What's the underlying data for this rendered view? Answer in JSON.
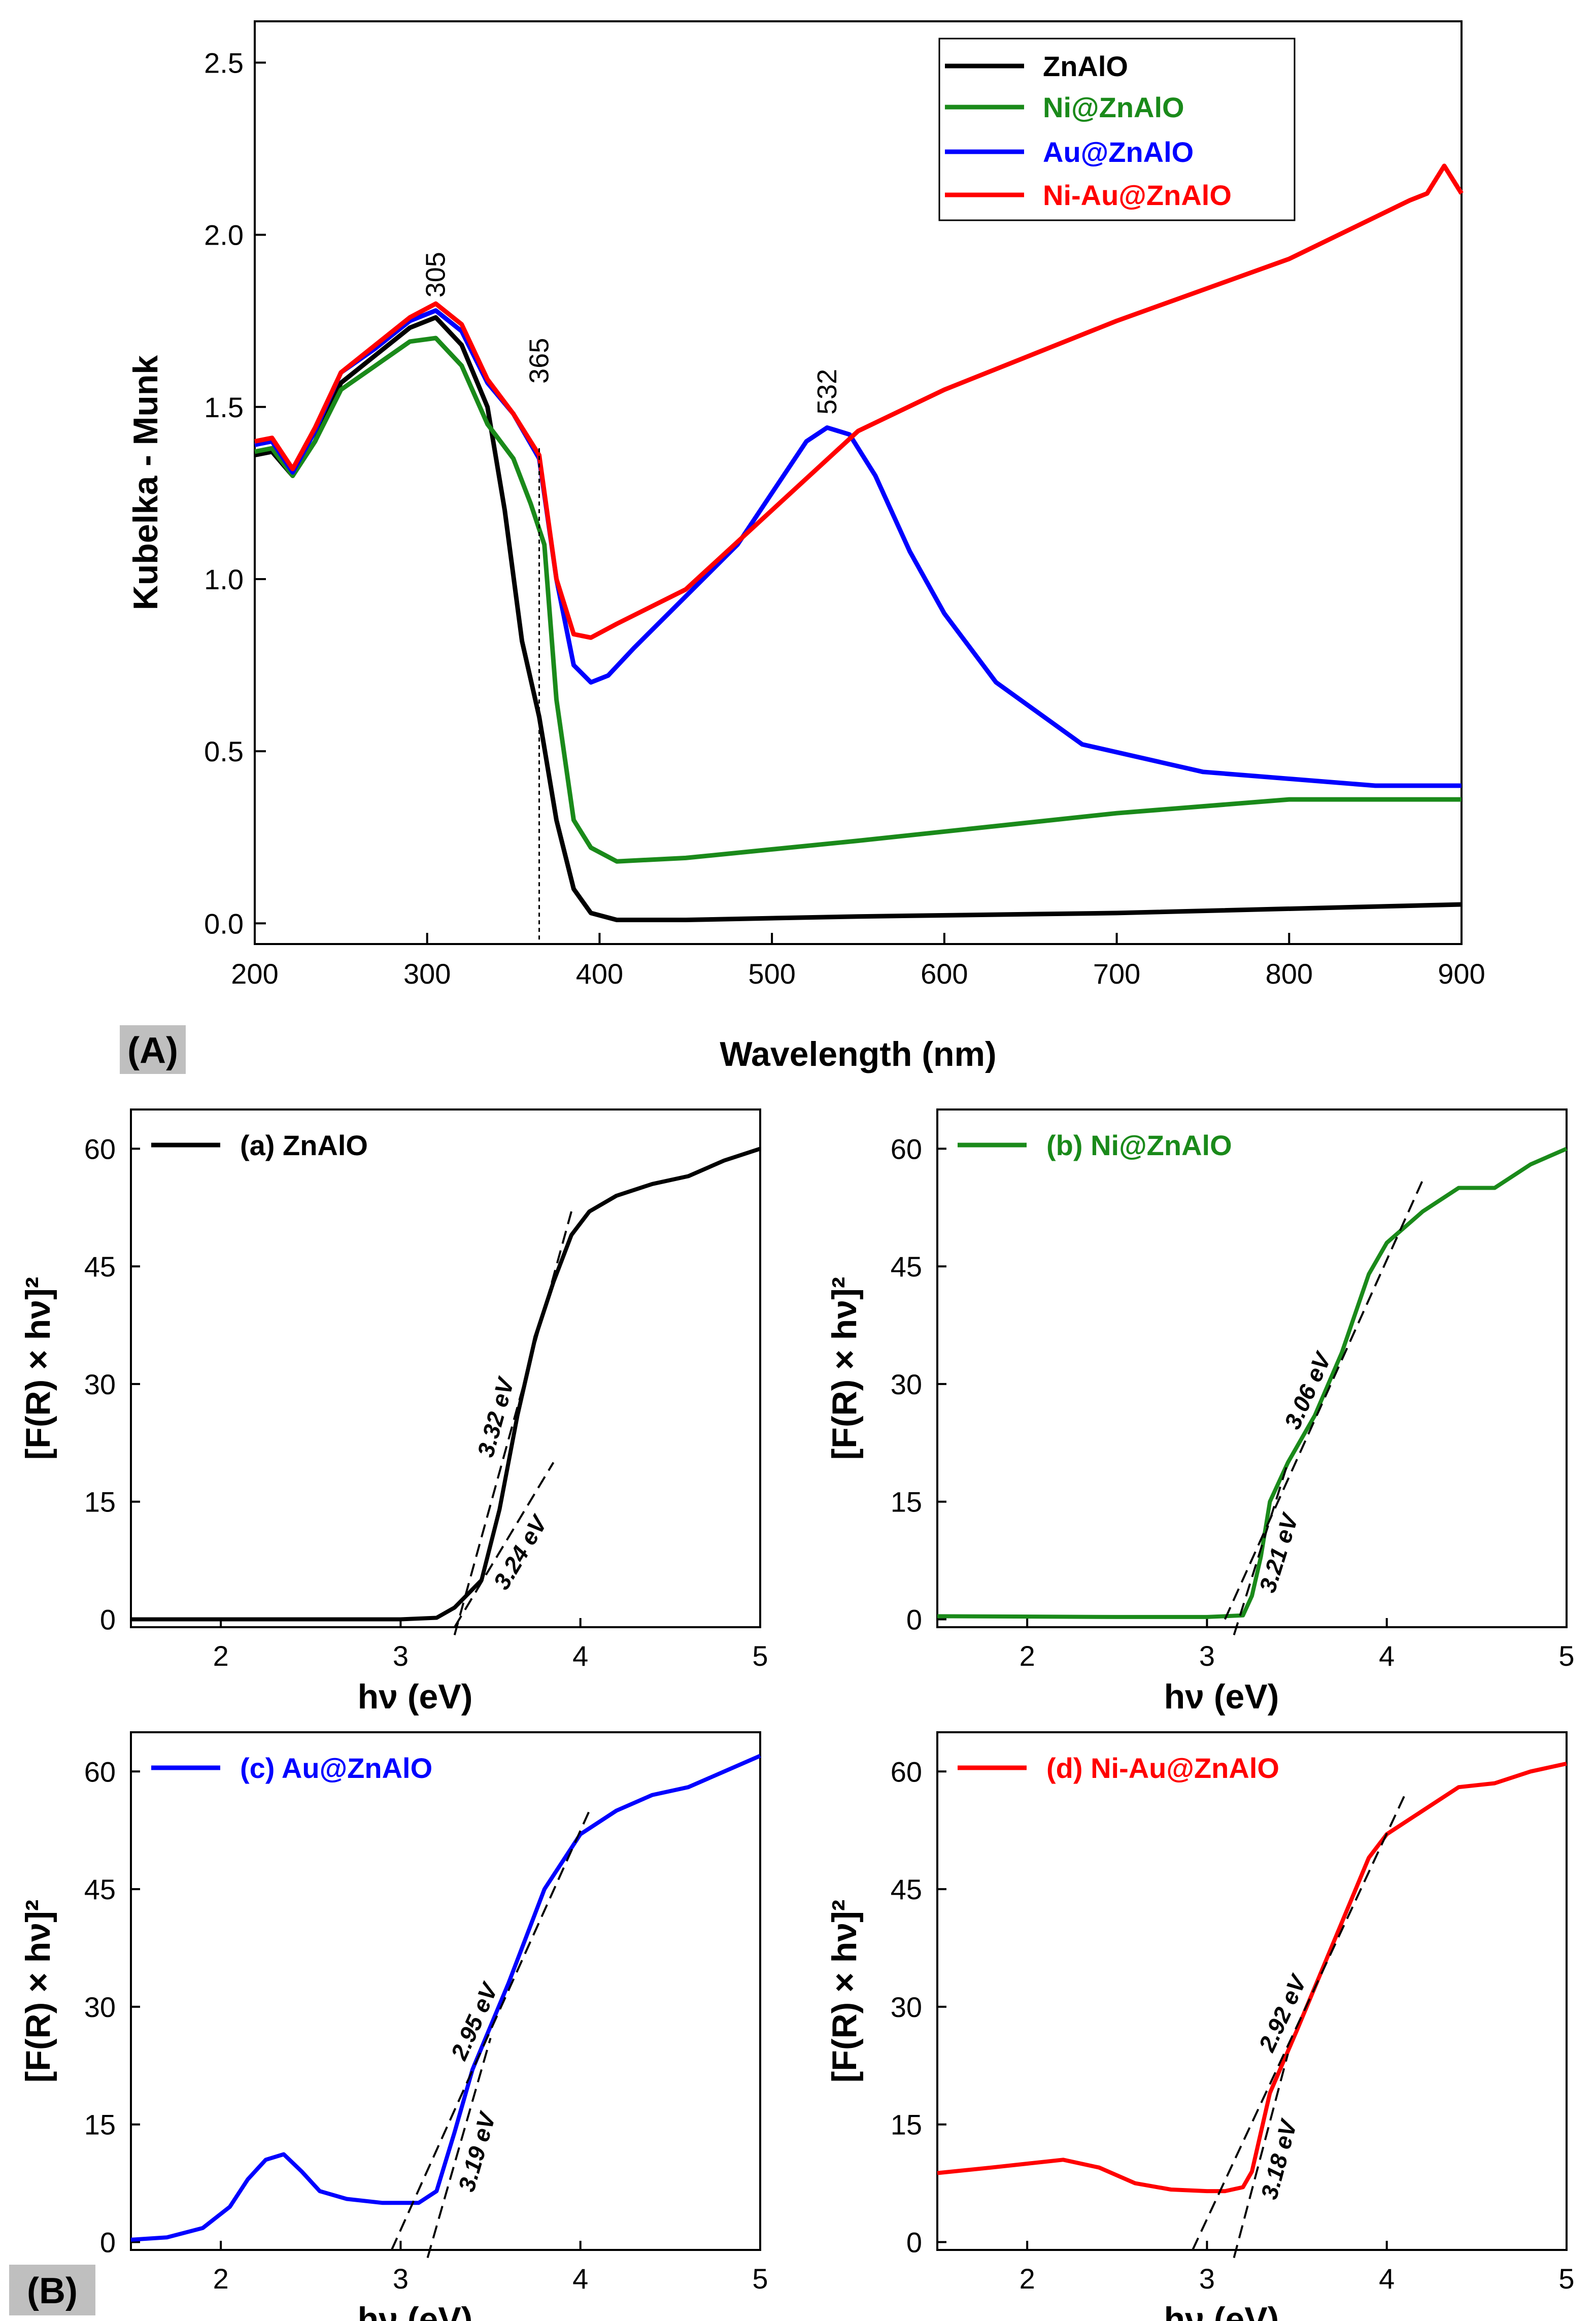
{
  "panel_labels": {
    "A": "(A)",
    "B": "(B)"
  },
  "chart_data": [
    {
      "id": "A",
      "type": "line",
      "title": "",
      "xlabel": "Wavelength (nm)",
      "ylabel": "Kubelka - Munk",
      "xlim": [
        200,
        900
      ],
      "ylim": [
        -0.06,
        2.62
      ],
      "xticks": [
        200,
        300,
        400,
        500,
        600,
        700,
        800,
        900
      ],
      "yticks": [
        0.0,
        0.5,
        1.0,
        1.5,
        2.0,
        2.5
      ],
      "ytick_labels": [
        "0.0",
        "0.5",
        "1.0",
        "1.5",
        "2.0",
        "2.5"
      ],
      "legend_position": "top-right",
      "series": [
        {
          "name": "ZnAlO",
          "color": "#000000",
          "x": [
            200,
            210,
            222,
            235,
            250,
            270,
            290,
            305,
            320,
            335,
            345,
            355,
            365,
            375,
            385,
            395,
            410,
            450,
            550,
            700,
            900
          ],
          "y": [
            1.36,
            1.37,
            1.3,
            1.4,
            1.57,
            1.65,
            1.73,
            1.76,
            1.68,
            1.5,
            1.2,
            0.82,
            0.6,
            0.3,
            0.1,
            0.03,
            0.01,
            0.01,
            0.02,
            0.03,
            0.055
          ]
        },
        {
          "name": "Ni@ZnAlO",
          "color": "#1a8a1a",
          "x": [
            200,
            210,
            222,
            235,
            250,
            270,
            290,
            305,
            320,
            335,
            350,
            360,
            368,
            375,
            385,
            395,
            410,
            450,
            550,
            700,
            800,
            900
          ],
          "y": [
            1.37,
            1.38,
            1.3,
            1.4,
            1.55,
            1.62,
            1.69,
            1.7,
            1.62,
            1.45,
            1.35,
            1.22,
            1.1,
            0.65,
            0.3,
            0.22,
            0.18,
            0.19,
            0.24,
            0.32,
            0.36,
            0.36
          ]
        },
        {
          "name": "Au@ZnAlO",
          "color": "#0000ff",
          "x": [
            200,
            210,
            222,
            235,
            250,
            270,
            290,
            305,
            320,
            335,
            350,
            365,
            375,
            385,
            395,
            405,
            420,
            450,
            480,
            500,
            520,
            532,
            545,
            560,
            580,
            600,
            630,
            680,
            750,
            850,
            900
          ],
          "y": [
            1.39,
            1.4,
            1.31,
            1.43,
            1.6,
            1.67,
            1.75,
            1.78,
            1.72,
            1.57,
            1.48,
            1.35,
            1.0,
            0.75,
            0.7,
            0.72,
            0.8,
            0.95,
            1.1,
            1.25,
            1.4,
            1.44,
            1.42,
            1.3,
            1.08,
            0.9,
            0.7,
            0.52,
            0.44,
            0.4,
            0.4
          ]
        },
        {
          "name": "Ni-Au@ZnAlO",
          "color": "#ff0000",
          "x": [
            200,
            210,
            222,
            235,
            250,
            270,
            290,
            305,
            320,
            335,
            350,
            365,
            375,
            385,
            395,
            410,
            450,
            500,
            550,
            600,
            700,
            800,
            870,
            880,
            890,
            900
          ],
          "y": [
            1.4,
            1.41,
            1.32,
            1.44,
            1.6,
            1.68,
            1.76,
            1.8,
            1.74,
            1.58,
            1.48,
            1.36,
            1.0,
            0.84,
            0.83,
            0.87,
            0.97,
            1.2,
            1.43,
            1.55,
            1.75,
            1.93,
            2.1,
            2.12,
            2.2,
            2.12
          ]
        }
      ],
      "annotations": [
        {
          "text": "305",
          "x": 305,
          "y": 1.8,
          "rotated": true
        },
        {
          "text": "365",
          "x": 365,
          "y": 1.55,
          "rotated": true,
          "dashed_vertical_line_at_x": 365
        },
        {
          "text": "532",
          "x": 532,
          "y": 1.46,
          "rotated": true
        }
      ]
    },
    {
      "id": "a",
      "type": "line",
      "legend": "(a) ZnAlO",
      "color": "#000000",
      "xlabel": "hν (eV)",
      "ylabel": "[F(R) × hν]²",
      "xlim": [
        1.5,
        5
      ],
      "ylim": [
        -1,
        65
      ],
      "xticks": [
        2,
        3,
        4,
        5
      ],
      "yticks": [
        0,
        15,
        30,
        45,
        60
      ],
      "x": [
        1.5,
        2.5,
        3.0,
        3.2,
        3.3,
        3.45,
        3.55,
        3.65,
        3.75,
        3.85,
        3.95,
        4.05,
        4.2,
        4.4,
        4.6,
        4.8,
        5.0
      ],
      "y": [
        0,
        0,
        0,
        0.2,
        1.5,
        5,
        14,
        26,
        36,
        43,
        49,
        52,
        54,
        55.5,
        56.5,
        58.5,
        60
      ],
      "fits": [
        {
          "label": "3.32 eV",
          "x": [
            3.3,
            3.95
          ],
          "y": [
            -2,
            52
          ]
        },
        {
          "label": "3.24 eV",
          "x": [
            3.3,
            3.85
          ],
          "y": [
            -1,
            20
          ]
        }
      ]
    },
    {
      "id": "b",
      "type": "line",
      "legend": "(b) Ni@ZnAlO",
      "color": "#1a8a1a",
      "xlabel": "hν (eV)",
      "ylabel": "[F(R) × hν]²",
      "xlim": [
        1.5,
        5
      ],
      "ylim": [
        -1,
        65
      ],
      "xticks": [
        2,
        3,
        4,
        5
      ],
      "yticks": [
        0,
        15,
        30,
        45,
        60
      ],
      "x": [
        1.5,
        2.5,
        3.0,
        3.2,
        3.25,
        3.3,
        3.35,
        3.45,
        3.6,
        3.75,
        3.9,
        4.0,
        4.2,
        4.4,
        4.6,
        4.8,
        5.0
      ],
      "y": [
        0.4,
        0.3,
        0.3,
        0.5,
        3,
        8,
        15,
        20,
        26,
        34,
        44,
        48,
        52,
        55,
        55,
        58,
        60
      ],
      "fits": [
        {
          "label": "3.06 eV",
          "x": [
            3.1,
            4.2
          ],
          "y": [
            0,
            56
          ]
        },
        {
          "label": "3.21 eV",
          "x": [
            3.15,
            3.45
          ],
          "y": [
            -2,
            20
          ]
        }
      ]
    },
    {
      "id": "c",
      "type": "line",
      "legend": "(c) Au@ZnAlO",
      "color": "#0000ff",
      "xlabel": "hν (eV)",
      "ylabel": "[F(R) × hν]²",
      "xlim": [
        1.5,
        5
      ],
      "ylim": [
        -1,
        65
      ],
      "xticks": [
        2,
        3,
        4,
        5
      ],
      "yticks": [
        0,
        15,
        30,
        45,
        60
      ],
      "x": [
        1.5,
        1.7,
        1.9,
        2.05,
        2.15,
        2.25,
        2.35,
        2.45,
        2.55,
        2.7,
        2.9,
        3.1,
        3.2,
        3.3,
        3.4,
        3.6,
        3.8,
        4.0,
        4.2,
        4.4,
        4.6,
        4.8,
        5.0
      ],
      "y": [
        0.3,
        0.6,
        1.8,
        4.5,
        8,
        10.5,
        11.2,
        9,
        6.5,
        5.5,
        5.0,
        5.0,
        6.5,
        14,
        22,
        33,
        45,
        52,
        55,
        57,
        58,
        60,
        62
      ],
      "fits": [
        {
          "label": "2.95 eV",
          "x": [
            2.95,
            4.05
          ],
          "y": [
            -1,
            55
          ]
        },
        {
          "label": "3.19 eV",
          "x": [
            3.15,
            3.5
          ],
          "y": [
            -2,
            26
          ]
        }
      ]
    },
    {
      "id": "d",
      "type": "line",
      "legend": "(d) Ni-Au@ZnAlO",
      "color": "#ff0000",
      "xlabel": "hν (eV)",
      "ylabel": "[F(R) × hν]²",
      "xlim": [
        1.5,
        5
      ],
      "ylim": [
        -1,
        65
      ],
      "xticks": [
        2,
        3,
        4,
        5
      ],
      "yticks": [
        0,
        15,
        30,
        45,
        60
      ],
      "x": [
        1.5,
        1.8,
        2.0,
        2.2,
        2.4,
        2.6,
        2.8,
        3.0,
        3.1,
        3.2,
        3.25,
        3.3,
        3.35,
        3.5,
        3.7,
        3.9,
        4.0,
        4.2,
        4.4,
        4.6,
        4.8,
        5.0
      ],
      "y": [
        8.8,
        9.5,
        10,
        10.5,
        9.5,
        7.5,
        6.7,
        6.5,
        6.5,
        7.0,
        9,
        14,
        19,
        27,
        38,
        49,
        52,
        55,
        58,
        58.5,
        60,
        61
      ],
      "fits": [
        {
          "label": "2.92 eV",
          "x": [
            2.92,
            4.1
          ],
          "y": [
            -1,
            57
          ]
        },
        {
          "label": "3.18 eV",
          "x": [
            3.15,
            3.45
          ],
          "y": [
            -2,
            24
          ]
        }
      ]
    }
  ]
}
